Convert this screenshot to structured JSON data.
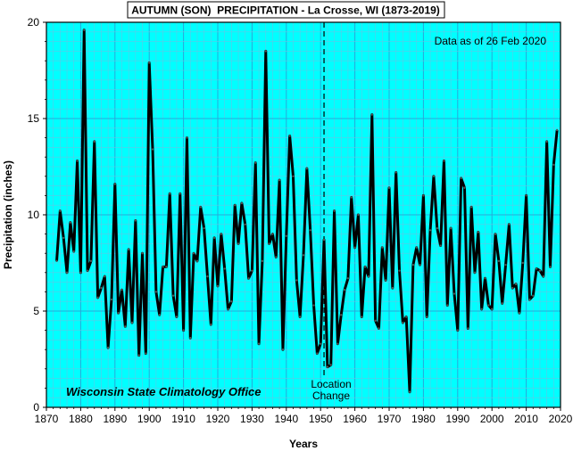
{
  "chart_data": {
    "type": "line",
    "title": "AUTUMN (SON)  PRECIPITATION - La Crosse, WI (1873-2019)",
    "xlabel": "Years",
    "ylabel": "Precipitation (inches)",
    "xlim": [
      1870,
      2020
    ],
    "ylim": [
      0,
      20
    ],
    "x_ticks": [
      1870,
      1880,
      1890,
      1900,
      1910,
      1920,
      1930,
      1940,
      1950,
      1960,
      1970,
      1980,
      1990,
      2000,
      2010,
      2020
    ],
    "y_ticks": [
      0,
      5,
      10,
      15,
      20
    ],
    "grid": true,
    "colors": {
      "background": "#00ffff",
      "grid": "#5fc8e6",
      "line": "#000000",
      "marker": "#555555"
    },
    "annotations": {
      "data_date": "Data as of 26 Feb 2020",
      "office": "Wisconsin State Climatology Office",
      "location_change_line1": "Location",
      "location_change_line2": "Change",
      "location_change_x": 1951
    },
    "series": [
      {
        "x": [
          1873,
          1874,
          1875,
          1876,
          1877,
          1878,
          1879,
          1880,
          1881,
          1882,
          1883,
          1884,
          1885,
          1886,
          1887,
          1888,
          1889,
          1890,
          1891,
          1892,
          1893,
          1894,
          1895,
          1896,
          1897,
          1898,
          1899,
          1900,
          1901,
          1902,
          1903,
          1904,
          1905,
          1906,
          1907,
          1908,
          1909,
          1910,
          1911,
          1912,
          1913,
          1914,
          1915,
          1916,
          1917,
          1918,
          1919,
          1920,
          1921,
          1922,
          1923,
          1924,
          1925,
          1926,
          1927,
          1928,
          1929,
          1930,
          1931,
          1932,
          1933,
          1934,
          1935,
          1936,
          1937,
          1938,
          1939,
          1940,
          1941,
          1942,
          1943,
          1944,
          1945,
          1946,
          1947,
          1948,
          1949,
          1950,
          1951,
          1952,
          1953,
          1954,
          1955,
          1956,
          1957,
          1958,
          1959,
          1960,
          1961,
          1962,
          1963,
          1964,
          1965,
          1966,
          1967,
          1968,
          1969,
          1970,
          1971,
          1972,
          1973,
          1974,
          1975,
          1976,
          1977,
          1978,
          1979,
          1980,
          1981,
          1982,
          1983,
          1984,
          1985,
          1986,
          1987,
          1988,
          1989,
          1990,
          1991,
          1992,
          1993,
          1994,
          1995,
          1996,
          1997,
          1998,
          1999,
          2000,
          2001,
          2002,
          2003,
          2004,
          2005,
          2006,
          2007,
          2008,
          2009,
          2010,
          2011,
          2012,
          2013,
          2014,
          2015,
          2016,
          2017,
          2018,
          2019
        ],
        "values": [
          7.6,
          10.2,
          8.8,
          7.0,
          9.6,
          8.1,
          12.8,
          7.0,
          19.6,
          7.1,
          7.6,
          13.8,
          5.7,
          6.2,
          6.8,
          3.1,
          5.6,
          11.6,
          4.9,
          6.1,
          4.2,
          8.2,
          4.4,
          9.7,
          2.7,
          8.0,
          2.8,
          17.9,
          13.4,
          6.0,
          4.8,
          7.3,
          7.3,
          11.1,
          5.8,
          4.7,
          11.1,
          4.0,
          14.0,
          3.6,
          8.0,
          7.6,
          10.4,
          9.3,
          6.8,
          4.3,
          8.8,
          6.3,
          9.0,
          7.2,
          5.1,
          5.5,
          10.5,
          8.5,
          10.6,
          9.5,
          6.7,
          7.1,
          12.7,
          3.3,
          7.6,
          18.5,
          8.5,
          9.0,
          7.8,
          11.8,
          3.0,
          8.9,
          14.1,
          12.0,
          6.6,
          4.7,
          7.9,
          12.4,
          9.2,
          5.3,
          2.8,
          3.3,
          8.7,
          2.1,
          2.2,
          10.2,
          3.3,
          4.8,
          6.1,
          6.7,
          10.9,
          8.3,
          10.0,
          4.7,
          7.3,
          6.8,
          15.2,
          4.5,
          4.1,
          8.3,
          6.6,
          11.4,
          6.2,
          12.2,
          7.1,
          4.4,
          4.7,
          0.8,
          7.4,
          8.3,
          7.4,
          11.0,
          4.7,
          9.2,
          12.0,
          9.3,
          8.4,
          12.8,
          5.3,
          9.3,
          5.9,
          4.0,
          11.9,
          11.4,
          4.1,
          10.4,
          7.0,
          9.1,
          5.1,
          6.7,
          5.3,
          5.1,
          9.0,
          7.6,
          5.4,
          7.4,
          9.5,
          6.2,
          6.4,
          4.9,
          7.5,
          11.0,
          5.6,
          5.8,
          7.2,
          7.1,
          6.8,
          13.8,
          7.3,
          12.6,
          14.4
        ]
      }
    ]
  }
}
